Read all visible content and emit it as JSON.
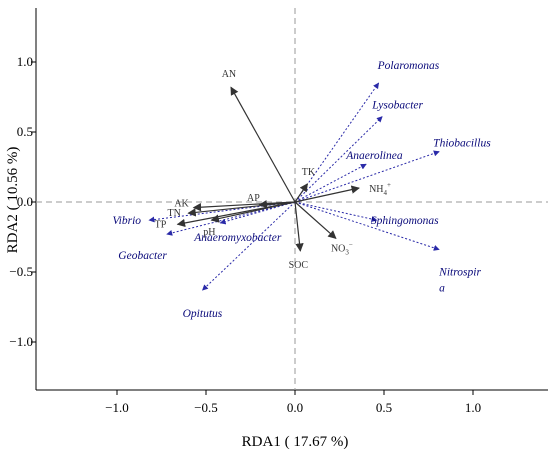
{
  "chart_data": {
    "type": "scatter",
    "subtype": "rda-biplot",
    "xlabel": "RDA1 ( 17.67 %)",
    "ylabel": "RDA2 ( 10.56 %)",
    "xlim": [
      -1.45,
      1.45
    ],
    "ylim": [
      -1.42,
      1.32
    ],
    "xticks": [
      "−1.0",
      "−0.5",
      "0.0",
      "0.5",
      "1.0"
    ],
    "xtick_values": [
      -1.0,
      -0.5,
      0.0,
      0.5,
      1.0
    ],
    "yticks": [
      "1.0",
      "0.5",
      "0.0",
      "−0.5",
      "−1.0"
    ],
    "ytick_values": [
      1.0,
      0.5,
      0.0,
      -0.5,
      -1.0
    ],
    "origin_lines": "dashed",
    "environmental_vectors": [
      {
        "name": "AN",
        "x": -0.36,
        "y": 0.82
      },
      {
        "name": "TK",
        "x": 0.07,
        "y": 0.13
      },
      {
        "name": "AP",
        "x": -0.2,
        "y": -0.02
      },
      {
        "name": "AK",
        "x": -0.57,
        "y": -0.04
      },
      {
        "name": "TN",
        "x": -0.6,
        "y": -0.08
      },
      {
        "name": "TP",
        "x": -0.66,
        "y": -0.16
      },
      {
        "name": "pH",
        "x": -0.47,
        "y": -0.13
      },
      {
        "name": "NH",
        "sup": "+",
        "sub": "4",
        "x": 0.36,
        "y": 0.1
      },
      {
        "name": "NO",
        "sup": "−",
        "sub": "3",
        "x": 0.23,
        "y": -0.26
      },
      {
        "name": "SOC",
        "x": 0.03,
        "y": -0.35
      }
    ],
    "species_vectors": [
      {
        "name": "Polaromonas",
        "x": 0.47,
        "y": 0.85
      },
      {
        "name": "Lysobacter",
        "x": 0.49,
        "y": 0.61
      },
      {
        "name": "Thiobacillus",
        "x": 0.81,
        "y": 0.36
      },
      {
        "name": "Anaerolinea",
        "x": 0.4,
        "y": 0.27
      },
      {
        "name": "Sphingomonas",
        "x": 0.46,
        "y": -0.13
      },
      {
        "name": "Nitrospira",
        "x": 0.81,
        "y": -0.34
      },
      {
        "name": "Vibrio",
        "x": -0.82,
        "y": -0.13
      },
      {
        "name": "Geobacter",
        "x": -0.72,
        "y": -0.23
      },
      {
        "name": "Anaeromyxobacter",
        "x": -0.42,
        "y": -0.15
      },
      {
        "name": "Opitutus",
        "x": -0.52,
        "y": -0.63
      }
    ],
    "colors": {
      "env_arrow": "#333333",
      "species_arrow": "#2a2aa8",
      "species_text": "#0a0a7a",
      "ref_line": "#9a9a9a"
    }
  }
}
